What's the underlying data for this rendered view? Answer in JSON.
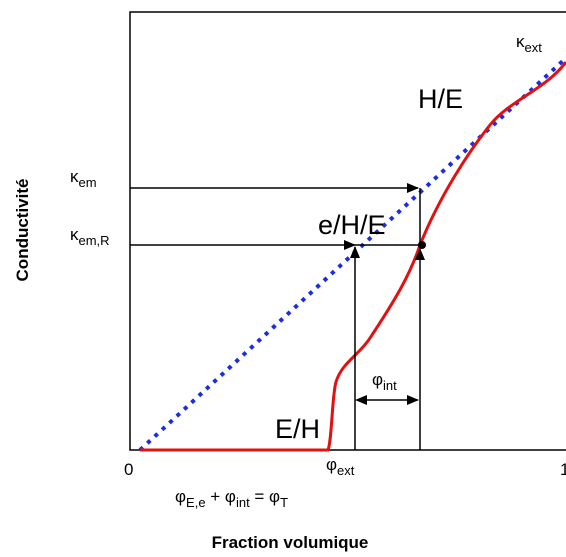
{
  "labels": {
    "kappa_em": {
      "symbol": "κ",
      "sub": "em"
    },
    "kappa_emR": {
      "symbol": "κ",
      "sub": "em,R"
    },
    "kappa_ext": {
      "symbol": "κ",
      "sub": "ext"
    },
    "phi_int": {
      "symbol": "φ",
      "sub": "int"
    },
    "phi_ext": {
      "symbol": "φ",
      "sub": "ext"
    },
    "region_HE": "H/E",
    "region_eHE": "e/H/E",
    "region_EH": "E/H",
    "x_start": "0",
    "x_end": "1",
    "formula": [
      "φ",
      "E,e",
      " + φ",
      "int",
      " = φ",
      "T"
    ]
  },
  "axes": {
    "y_label": "Conductivité",
    "x_label": "Fraction volumique"
  }
}
